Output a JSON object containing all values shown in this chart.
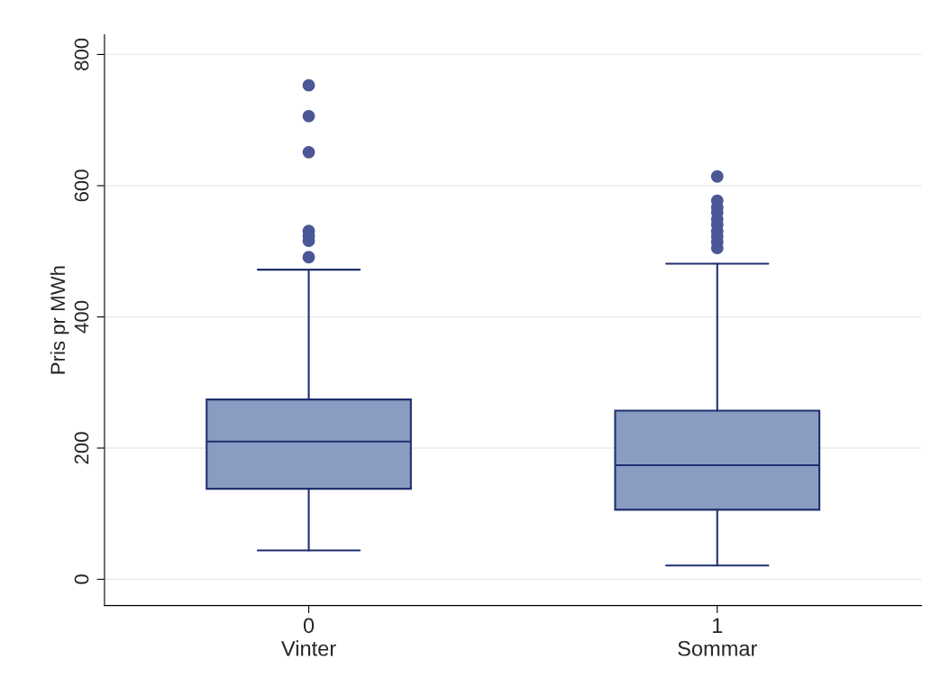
{
  "chart_data": {
    "type": "box",
    "ylabel": "Pris pr MWh",
    "categories": [
      "0\nVinter",
      "1\nSommar"
    ],
    "boxes": [
      {
        "low": 44,
        "q1": 138,
        "median": 210,
        "q3": 274,
        "high": 472,
        "outliers": [
          753,
          706,
          651,
          531,
          523,
          516,
          491
        ]
      },
      {
        "low": 21,
        "q1": 106,
        "median": 174,
        "q3": 257,
        "high": 481,
        "outliers": [
          614,
          577,
          567,
          559,
          549,
          541,
          531,
          523,
          514,
          505
        ]
      }
    ],
    "color": "#8b9cc2",
    "ylim": [
      -40,
      830
    ],
    "yticks": [
      0,
      200,
      400,
      600,
      800
    ],
    "grid": "y"
  }
}
